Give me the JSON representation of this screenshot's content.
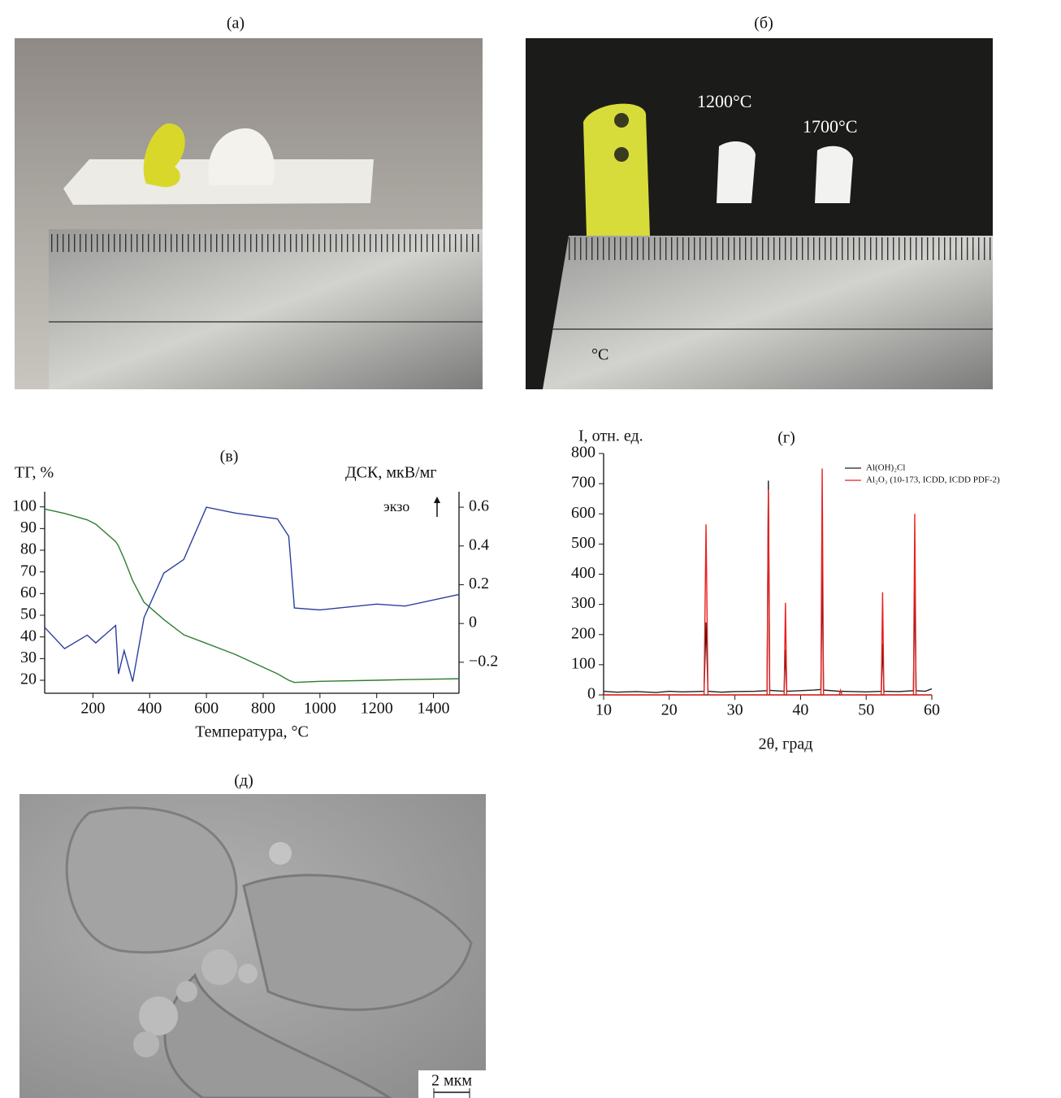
{
  "panels": {
    "a": {
      "label": "(а)"
    },
    "b": {
      "label": "(б)",
      "annotations": [
        "1200°C",
        "1700°C",
        "°C"
      ]
    },
    "d": {
      "label": "(д)",
      "scale_bar": "2 мкм"
    }
  },
  "chart_data": [
    {
      "type": "line",
      "title": "(в)",
      "xlabel": "Температура, °C",
      "ylabel": "ТГ, %",
      "y2label": "ДСК, мкВ/мг",
      "annotation": "экзо",
      "x": [
        30,
        100,
        180,
        210,
        280,
        290,
        310,
        340,
        380,
        450,
        520,
        600,
        700,
        850,
        890,
        910,
        1000,
        1200,
        1300,
        1490
      ],
      "series": [
        {
          "color": "#2e7d32",
          "values": [
            99,
            97,
            94,
            92,
            84,
            82,
            76,
            66,
            56,
            48,
            41,
            37,
            32,
            23,
            20,
            19,
            19.5,
            20,
            20.3,
            20.7
          ]
        },
        {
          "color": "#2b3fa0",
          "axis": "y2",
          "values": [
            -0.02,
            -0.13,
            -0.06,
            -0.1,
            -0.01,
            -0.26,
            -0.14,
            -0.3,
            0.03,
            0.26,
            0.33,
            0.6,
            0.57,
            0.54,
            0.45,
            0.08,
            0.07,
            0.1,
            0.09,
            0.15
          ]
        }
      ],
      "xlim": [
        30,
        1490
      ],
      "xticks": [
        200,
        400,
        600,
        800,
        1000,
        1200,
        1400
      ],
      "ylim": [
        14,
        107
      ],
      "yticks": [
        20,
        30,
        40,
        50,
        60,
        70,
        80,
        90,
        100
      ],
      "y2lim": [
        -0.36,
        0.68
      ],
      "y2ticks": [
        {
          "value": -0.2,
          "label": "−0.2"
        },
        0,
        0.2,
        0.4,
        0.6
      ]
    },
    {
      "type": "line",
      "title": "(г)",
      "xlabel": "2θ, град",
      "ylabel": "I, отн. ед.",
      "legend": "upper right",
      "x": [
        10,
        12,
        15,
        18,
        20,
        22,
        25.3,
        25.6,
        25.9,
        28,
        30,
        33,
        34.9,
        35.1,
        35.3,
        37.5,
        37.7,
        37.9,
        40,
        42,
        43.1,
        43.3,
        43.5,
        45.9,
        46.1,
        46.3,
        50,
        52.3,
        52.5,
        52.7,
        55,
        57.2,
        57.4,
        57.6,
        59,
        60
      ],
      "series": [
        {
          "name": "Al(OH)₂Cl",
          "color": "#222222",
          "values": [
            12,
            9,
            11,
            8,
            12,
            10,
            12,
            240,
            12,
            9,
            11,
            12,
            14,
            710,
            15,
            12,
            150,
            12,
            14,
            16,
            18,
            420,
            16,
            12,
            10,
            12,
            10,
            12,
            170,
            12,
            11,
            14,
            380,
            14,
            12,
            20
          ]
        },
        {
          "name": "Al₂O₃ (10-173, ICDD, ICDD PDF-2)",
          "color": "#e8201e",
          "values": [
            0,
            0,
            0,
            0,
            0,
            0,
            0,
            565,
            0,
            0,
            0,
            0,
            0,
            680,
            0,
            0,
            305,
            0,
            0,
            0,
            0,
            750,
            0,
            0,
            15,
            0,
            0,
            0,
            340,
            0,
            0,
            0,
            600,
            0,
            0,
            0
          ]
        }
      ],
      "xlim": [
        10,
        60
      ],
      "xticks": [
        10,
        20,
        30,
        40,
        50,
        60
      ],
      "ylim": [
        0,
        800
      ],
      "yticks": [
        0,
        100,
        200,
        300,
        400,
        500,
        600,
        700,
        800
      ]
    }
  ]
}
